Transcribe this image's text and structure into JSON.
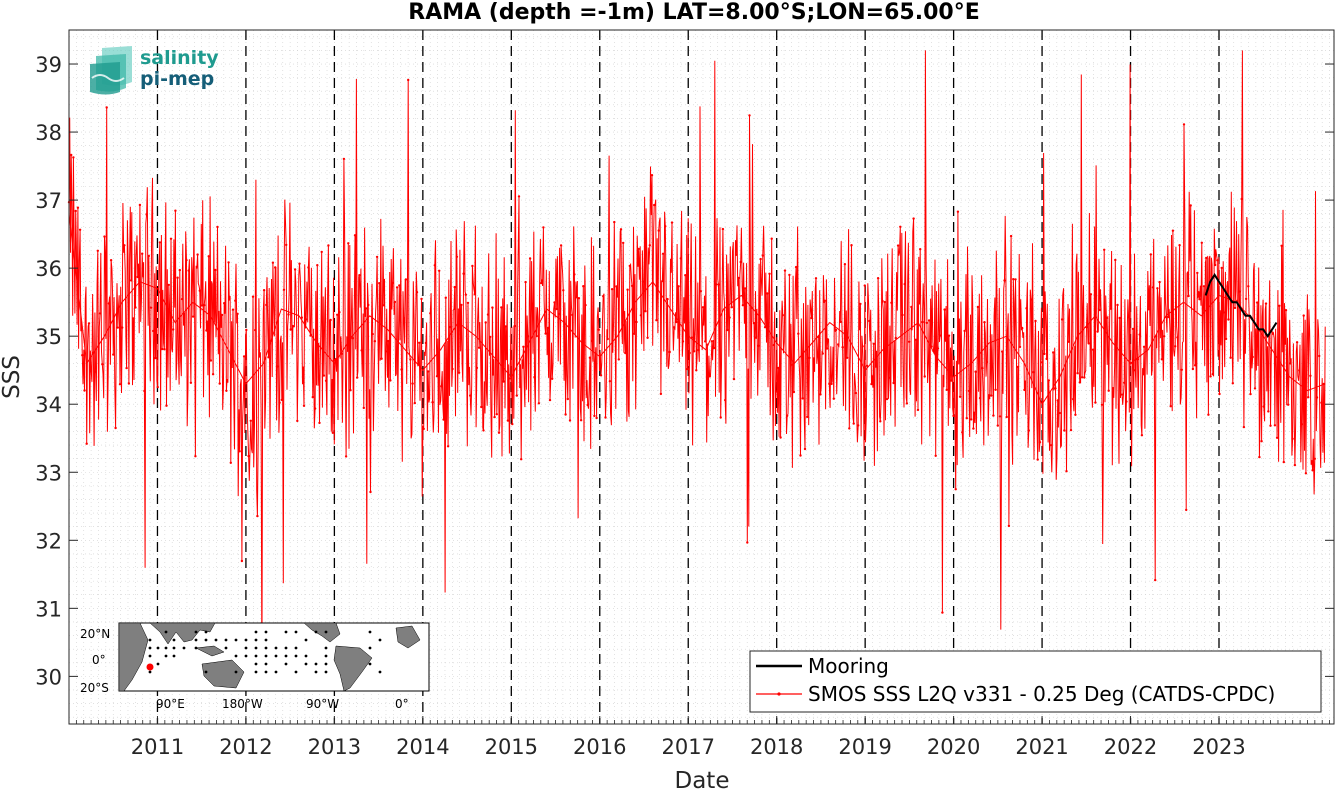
{
  "chart_data": {
    "type": "line",
    "title": "RAMA (depth =-1m) LAT=8.00°S;LON=65.00°E",
    "xlabel": "Date",
    "ylabel": "SSS",
    "xlim": [
      2010.0,
      2024.3
    ],
    "ylim": [
      29.3,
      39.5
    ],
    "x_ticks": [
      "2011",
      "2012",
      "2013",
      "2014",
      "2015",
      "2016",
      "2017",
      "2018",
      "2019",
      "2020",
      "2021",
      "2022",
      "2023"
    ],
    "y_ticks": [
      "30",
      "31",
      "32",
      "33",
      "34",
      "35",
      "36",
      "37",
      "38",
      "39"
    ],
    "year_boundaries": [
      2011,
      2012,
      2013,
      2014,
      2015,
      2016,
      2017,
      2018,
      2019,
      2020,
      2021,
      2022,
      2023
    ],
    "grid": true,
    "legend_position": "bottom-right",
    "series": [
      {
        "name": "Mooring",
        "color": "#000000",
        "x": [
          2022.85,
          2022.9,
          2022.95,
          2023.0,
          2023.05,
          2023.1,
          2023.15,
          2023.2,
          2023.25,
          2023.3,
          2023.35,
          2023.4,
          2023.45,
          2023.5,
          2023.55,
          2023.6,
          2023.65
        ],
        "y": [
          35.6,
          35.8,
          35.9,
          35.8,
          35.7,
          35.6,
          35.5,
          35.5,
          35.4,
          35.3,
          35.3,
          35.2,
          35.1,
          35.1,
          35.0,
          35.1,
          35.2
        ]
      },
      {
        "name": "SMOS SSS L2Q v331 - 0.25 Deg (CATDS-CPDC)",
        "color": "#ff0000",
        "x": [
          2010.0,
          2010.2,
          2010.4,
          2010.6,
          2010.8,
          2011.0,
          2011.2,
          2011.4,
          2011.6,
          2011.8,
          2012.0,
          2012.2,
          2012.4,
          2012.6,
          2012.8,
          2013.0,
          2013.2,
          2013.4,
          2013.6,
          2013.8,
          2014.0,
          2014.2,
          2014.4,
          2014.6,
          2014.8,
          2015.0,
          2015.2,
          2015.4,
          2015.6,
          2015.8,
          2016.0,
          2016.2,
          2016.4,
          2016.6,
          2016.8,
          2017.0,
          2017.2,
          2017.4,
          2017.6,
          2017.8,
          2018.0,
          2018.2,
          2018.4,
          2018.6,
          2018.8,
          2019.0,
          2019.2,
          2019.4,
          2019.6,
          2019.8,
          2020.0,
          2020.2,
          2020.4,
          2020.6,
          2020.8,
          2021.0,
          2021.2,
          2021.4,
          2021.6,
          2021.8,
          2022.0,
          2022.2,
          2022.4,
          2022.6,
          2022.8,
          2023.0,
          2023.2,
          2023.4,
          2023.6,
          2023.8,
          2024.0,
          2024.2
        ],
        "y": [
          36.8,
          34.6,
          35.0,
          35.5,
          35.8,
          35.7,
          35.2,
          35.5,
          35.3,
          34.8,
          34.3,
          34.6,
          35.4,
          35.3,
          34.9,
          34.6,
          35.0,
          35.3,
          35.1,
          34.8,
          34.5,
          34.8,
          35.2,
          35.0,
          34.7,
          34.4,
          34.9,
          35.4,
          35.2,
          34.9,
          34.7,
          35.0,
          35.5,
          35.8,
          35.4,
          35.0,
          34.8,
          35.4,
          35.6,
          35.3,
          34.9,
          34.6,
          34.9,
          35.2,
          35.0,
          34.5,
          34.8,
          35.0,
          35.2,
          34.7,
          34.4,
          34.6,
          34.9,
          35.0,
          34.6,
          34.0,
          34.4,
          35.0,
          35.3,
          34.9,
          34.6,
          34.8,
          35.3,
          35.5,
          35.3,
          35.6,
          35.5,
          35.2,
          34.8,
          34.4,
          34.2,
          34.3
        ],
        "noise_range": [
          30.0,
          39.2
        ]
      }
    ]
  },
  "logo": {
    "line1": "salinity",
    "line2": "pi-mep"
  },
  "inset_map": {
    "lat_labels": [
      "20°N",
      "0°",
      "20°S"
    ],
    "lon_labels": [
      "90°E",
      "180°W",
      "90°W",
      "0°"
    ]
  }
}
